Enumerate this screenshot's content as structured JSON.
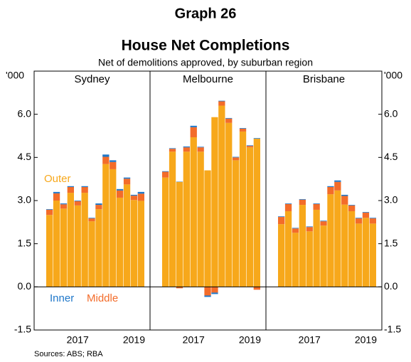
{
  "chart_data": {
    "type": "bar",
    "heading": "Graph 26",
    "title": "House Net Completions",
    "subtitle": "Net of demolitions approved, by suburban region",
    "y_unit": "'000",
    "source": "Sources:   ABS; RBA",
    "ylim": [
      -1.5,
      7.5
    ],
    "yticks": [
      {
        "value": 6,
        "label": "6.0"
      },
      4.5,
      {
        "value": 3,
        "label": "3.0"
      },
      1.5,
      {
        "value": 0,
        "label": "0.0"
      },
      -1.5
    ],
    "categories": [
      null,
      null,
      null,
      null,
      "2017",
      null,
      null,
      null,
      null,
      null,
      null,
      null,
      "2019",
      null
    ],
    "legend": [
      {
        "name": "Outer",
        "color": "#f7a81b"
      },
      {
        "name": "Middle",
        "color": "#f36c2a"
      },
      {
        "name": "Inner",
        "color": "#1f77c9"
      }
    ],
    "panels": [
      {
        "title": "Sydney",
        "series": [
          {
            "values": [
              2.5,
              3.0,
              2.72,
              3.27,
              2.83,
              3.27,
              2.28,
              2.7,
              4.27,
              4.09,
              3.1,
              3.56,
              3.02,
              2.99
            ]
          },
          {
            "values": [
              0.18,
              0.25,
              0.15,
              0.2,
              0.15,
              0.2,
              0.1,
              0.15,
              0.25,
              0.25,
              0.25,
              0.2,
              0.15,
              0.25
            ]
          },
          {
            "values": [
              0.02,
              0.05,
              0.03,
              0.03,
              0.02,
              0.03,
              0.02,
              0.05,
              0.08,
              0.06,
              0.05,
              0.04,
              0.03,
              0.06
            ]
          }
        ]
      },
      {
        "title": "Melbourne",
        "series": [
          {
            "values": [
              3.8,
              4.7,
              3.65,
              4.7,
              5.2,
              4.7,
              4.05,
              5.9,
              6.3,
              5.7,
              4.4,
              5.4,
              4.85,
              5.15
            ]
          },
          {
            "values": [
              0.2,
              0.1,
              -0.05,
              0.15,
              0.35,
              0.15,
              -0.3,
              -0.2,
              0.15,
              0.15,
              0.1,
              0.1,
              0.05,
              -0.1
            ]
          },
          {
            "values": [
              0.02,
              0.02,
              0.01,
              0.03,
              0.05,
              0.02,
              -0.05,
              -0.05,
              0.02,
              0.02,
              0.02,
              0.02,
              0.02,
              0.02
            ]
          }
        ]
      },
      {
        "title": "Brisbane",
        "series": [
          {
            "values": [
              2.18,
              2.63,
              1.88,
              2.85,
              1.93,
              2.68,
              2.13,
              3.22,
              3.35,
              2.86,
              2.63,
              2.2,
              2.4,
              2.2
            ]
          },
          {
            "values": [
              0.25,
              0.25,
              0.15,
              0.18,
              0.15,
              0.2,
              0.15,
              0.25,
              0.3,
              0.3,
              0.2,
              0.18,
              0.18,
              0.18
            ]
          },
          {
            "values": [
              0.02,
              0.02,
              0.02,
              0.02,
              0.02,
              0.02,
              0.02,
              0.03,
              0.05,
              0.04,
              0.02,
              0.02,
              0.02,
              0.02
            ]
          }
        ]
      }
    ]
  }
}
